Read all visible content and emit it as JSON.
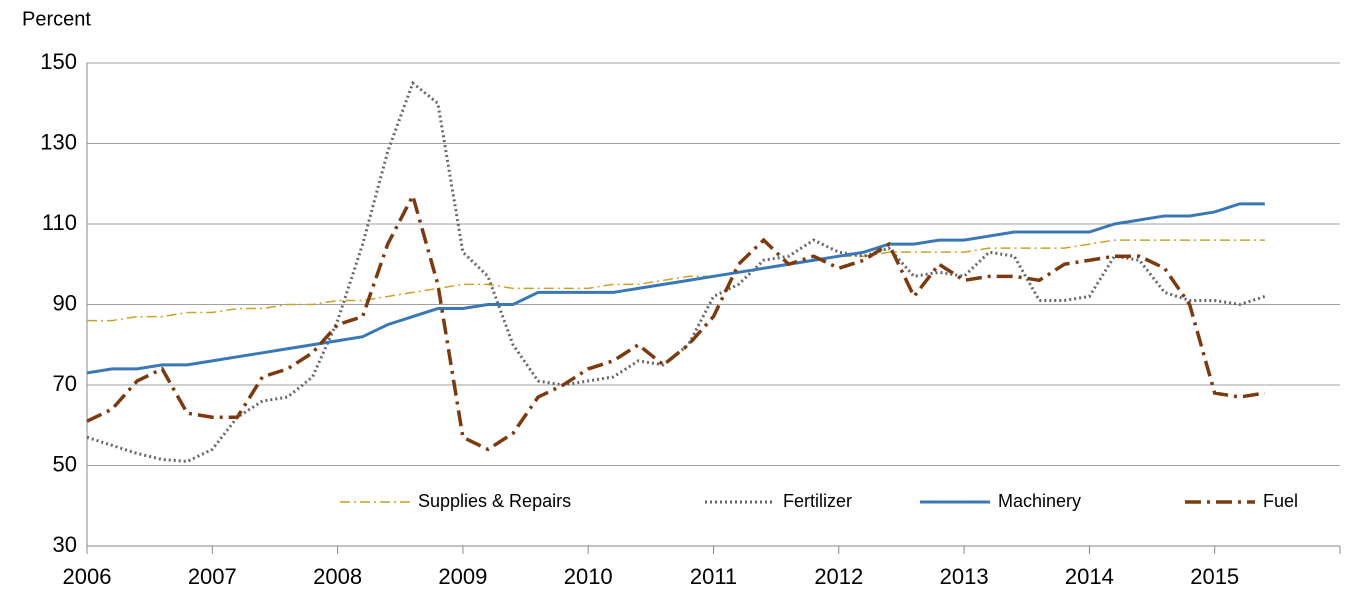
{
  "chart_data": {
    "type": "line",
    "y_label": "Percent",
    "x": [
      2006,
      2006.2,
      2006.4,
      2006.6,
      2006.8,
      2007,
      2007.2,
      2007.4,
      2007.6,
      2007.8,
      2008,
      2008.2,
      2008.4,
      2008.6,
      2008.8,
      2009,
      2009.2,
      2009.4,
      2009.6,
      2009.8,
      2010,
      2010.2,
      2010.4,
      2010.6,
      2010.8,
      2011,
      2011.2,
      2011.4,
      2011.6,
      2011.8,
      2012,
      2012.2,
      2012.4,
      2012.6,
      2012.8,
      2013,
      2013.2,
      2013.4,
      2013.6,
      2013.8,
      2014,
      2014.2,
      2014.4,
      2014.6,
      2014.8,
      2015,
      2015.2,
      2015.4
    ],
    "series": [
      {
        "name": "Supplies & Repairs",
        "color": "#c9a227",
        "dash": "10,4,2,4",
        "width": 1.5,
        "values": [
          86,
          86,
          87,
          87,
          88,
          88,
          89,
          89,
          90,
          90,
          91,
          91,
          92,
          93,
          94,
          95,
          95,
          94,
          94,
          94,
          94,
          95,
          95,
          96,
          97,
          97,
          98,
          99,
          100,
          101,
          102,
          102,
          103,
          103,
          103,
          103,
          104,
          104,
          104,
          104,
          105,
          106,
          106,
          106,
          106,
          106,
          106,
          106
        ]
      },
      {
        "name": "Fertilizer",
        "color": "#666666",
        "dash": "2,3",
        "width": 3,
        "values": [
          57,
          55,
          53,
          51.5,
          51,
          54,
          62,
          66,
          67,
          72,
          86,
          105,
          128,
          145,
          140,
          103,
          97,
          80,
          71,
          70,
          71,
          72,
          76,
          75,
          80,
          92,
          95,
          101,
          102,
          106,
          103,
          102,
          104,
          97,
          98,
          97,
          103,
          102,
          91,
          91,
          92,
          102,
          101,
          93,
          91,
          91,
          90,
          92
        ]
      },
      {
        "name": "Machinery",
        "color": "#3a78b5",
        "dash": "",
        "width": 3,
        "values": [
          73,
          74,
          74,
          75,
          75,
          76,
          77,
          78,
          79,
          80,
          81,
          82,
          85,
          87,
          89,
          89,
          90,
          90,
          93,
          93,
          93,
          93,
          94,
          95,
          96,
          97,
          98,
          99,
          100,
          101,
          102,
          103,
          105,
          105,
          106,
          106,
          107,
          108,
          108,
          108,
          108,
          110,
          111,
          112,
          112,
          113,
          115,
          115
        ]
      },
      {
        "name": "Fuel",
        "color": "#7b3a10",
        "dash": "16,6,3,6",
        "width": 3.5,
        "values": [
          61,
          64,
          71,
          74,
          63,
          62,
          62,
          72,
          74,
          78,
          85,
          87,
          105,
          117,
          95,
          57,
          54,
          58,
          67,
          70,
          74,
          76,
          80,
          75,
          80,
          87,
          100,
          106,
          100,
          102,
          99,
          101,
          105,
          92,
          100,
          96,
          97,
          97,
          96,
          100,
          101,
          102,
          102,
          99,
          90,
          68,
          67,
          68
        ]
      }
    ],
    "xlim": [
      2006,
      2016
    ],
    "xticks": [
      2006,
      2007,
      2008,
      2009,
      2010,
      2011,
      2012,
      2013,
      2014,
      2015
    ],
    "ylim": [
      30,
      150
    ],
    "yticks": [
      30,
      50,
      70,
      90,
      110,
      130,
      150
    ],
    "grid": true,
    "legend": "bottom"
  }
}
